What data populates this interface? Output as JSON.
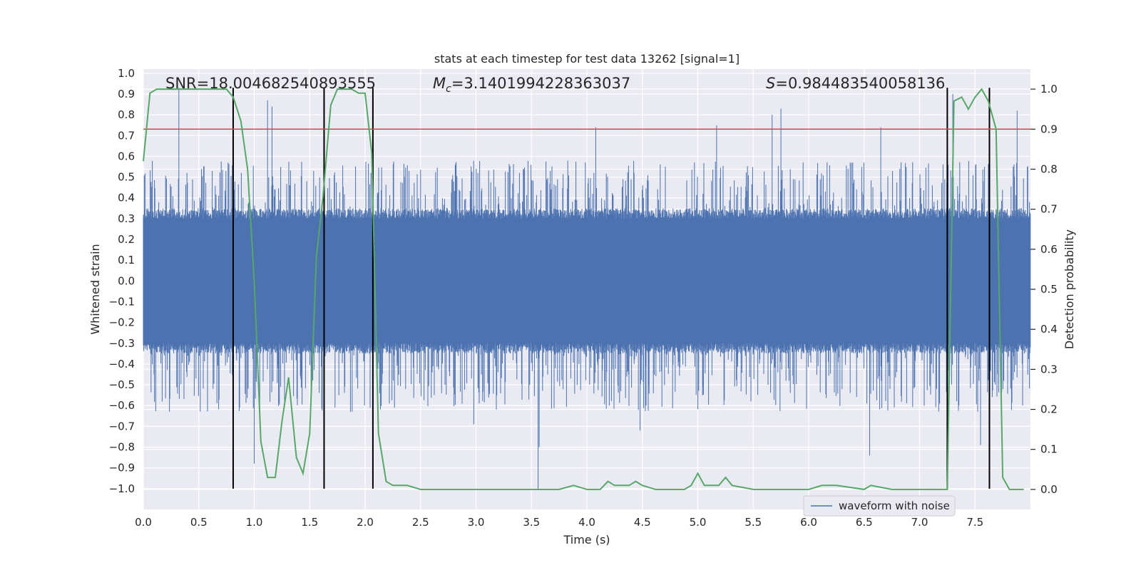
{
  "chart_data": {
    "type": "line",
    "title": "stats at each timestep for test data 13262 [signal=1]",
    "xlabel": "Time (s)",
    "ylabel_left": "Whitened strain",
    "ylabel_right": "Detection probability",
    "xlim": [
      0.0,
      8.0
    ],
    "ylim_left": [
      -1.1,
      1.02
    ],
    "ylim_right": [
      -0.05,
      1.05
    ],
    "xticks": [
      0.0,
      0.5,
      1.0,
      1.5,
      2.0,
      2.5,
      3.0,
      3.5,
      4.0,
      4.5,
      5.0,
      5.5,
      6.0,
      6.5,
      7.0,
      7.5
    ],
    "xtick_labels": [
      "0.0",
      "0.5",
      "1.0",
      "1.5",
      "2.0",
      "2.5",
      "3.0",
      "3.5",
      "4.0",
      "4.5",
      "5.0",
      "5.5",
      "6.0",
      "6.5",
      "7.0",
      "7.5"
    ],
    "yticks_left": [
      1.0,
      0.9,
      0.8,
      0.7,
      0.6,
      0.5,
      0.4,
      0.3,
      0.2,
      0.1,
      0.0,
      -0.1,
      -0.2,
      -0.3,
      -0.4,
      -0.5,
      -0.6,
      -0.7,
      -0.8,
      -0.9,
      -1.0
    ],
    "ytick_labels_left": [
      "1.0",
      "0.9",
      "0.8",
      "0.7",
      "0.6",
      "0.5",
      "0.4",
      "0.3",
      "0.2",
      "0.1",
      "0.0",
      "−0.1",
      "−0.2",
      "−0.3",
      "−0.4",
      "−0.5",
      "−0.6",
      "−0.7",
      "−0.8",
      "−0.9",
      "−1.0"
    ],
    "yticks_right": [
      1.0,
      0.9,
      0.8,
      0.7,
      0.6,
      0.5,
      0.4,
      0.3,
      0.2,
      0.1,
      0.0
    ],
    "ytick_labels_right": [
      "1.0",
      "0.9",
      "0.8",
      "0.7",
      "0.6",
      "0.5",
      "0.4",
      "0.3",
      "0.2",
      "0.1",
      "0.0"
    ],
    "annotations": {
      "snr": "SNR=18.004682540893555",
      "mc_symbol": "M",
      "mc_sub": "c",
      "mc_value": "=3.1401994228363037",
      "s_symbol": "S",
      "s_value": "=0.984483540058136"
    },
    "threshold": {
      "axis": "right",
      "value": 0.9,
      "color": "#c44e52"
    },
    "vertical_lines": {
      "x": [
        0.81,
        1.63,
        2.07,
        7.25,
        7.63
      ],
      "y_range_left": [
        -1.0,
        0.93
      ],
      "color": "#000000"
    },
    "waveform": {
      "name": "waveform with noise",
      "color": "#4c72b0",
      "core_envelope": 0.3,
      "typical_peak_range": [
        0.3,
        0.58
      ],
      "dense_sampling": true,
      "notable_spikes": [
        {
          "x": 0.32,
          "y": 0.93
        },
        {
          "x": 0.81,
          "y": 0.9
        },
        {
          "x": 1.12,
          "y": 0.87
        },
        {
          "x": 1.16,
          "y": 0.84
        },
        {
          "x": 1.0,
          "y": -0.88
        },
        {
          "x": 3.57,
          "y": -0.8
        },
        {
          "x": 3.56,
          "y": -1.0
        },
        {
          "x": 4.08,
          "y": 0.74
        },
        {
          "x": 5.17,
          "y": 0.75
        },
        {
          "x": 5.67,
          "y": 0.8
        },
        {
          "x": 5.75,
          "y": 0.83
        },
        {
          "x": 6.65,
          "y": 0.74
        },
        {
          "x": 6.55,
          "y": -0.84
        },
        {
          "x": 7.3,
          "y": 0.9
        },
        {
          "x": 7.55,
          "y": -0.79
        },
        {
          "x": 7.88,
          "y": 0.82
        },
        {
          "x": 2.98,
          "y": -0.69
        },
        {
          "x": 4.48,
          "y": -0.72
        }
      ]
    },
    "detection_probability": {
      "color": "#55a868",
      "x": [
        0.0,
        0.06,
        0.12,
        0.25,
        0.5,
        0.75,
        0.81,
        0.88,
        0.94,
        1.0,
        1.06,
        1.12,
        1.19,
        1.25,
        1.31,
        1.38,
        1.44,
        1.5,
        1.56,
        1.62,
        1.69,
        1.75,
        1.81,
        1.88,
        1.94,
        2.0,
        2.06,
        2.12,
        2.19,
        2.25,
        2.31,
        2.38,
        2.5,
        3.0,
        3.5,
        3.75,
        3.88,
        4.0,
        4.12,
        4.19,
        4.25,
        4.38,
        4.44,
        4.5,
        4.62,
        4.88,
        4.94,
        5.0,
        5.06,
        5.19,
        5.25,
        5.31,
        5.5,
        6.0,
        6.12,
        6.19,
        6.25,
        6.5,
        6.56,
        6.75,
        7.0,
        7.19,
        7.25,
        7.31,
        7.38,
        7.44,
        7.5,
        7.56,
        7.62,
        7.69,
        7.75,
        7.81,
        7.94
      ],
      "y": [
        0.82,
        0.99,
        1.0,
        1.0,
        1.0,
        1.0,
        0.98,
        0.92,
        0.8,
        0.52,
        0.12,
        0.03,
        0.03,
        0.17,
        0.28,
        0.08,
        0.04,
        0.14,
        0.58,
        0.73,
        0.96,
        1.0,
        1.0,
        1.0,
        0.99,
        0.99,
        0.84,
        0.14,
        0.02,
        0.01,
        0.01,
        0.01,
        0.0,
        0.0,
        0.0,
        0.0,
        0.01,
        0.0,
        0.0,
        0.02,
        0.01,
        0.01,
        0.02,
        0.01,
        0.0,
        0.0,
        0.01,
        0.04,
        0.01,
        0.01,
        0.03,
        0.01,
        0.0,
        0.0,
        0.01,
        0.01,
        0.01,
        0.0,
        0.01,
        0.0,
        0.0,
        0.0,
        0.0,
        0.97,
        0.98,
        0.95,
        0.98,
        1.0,
        0.97,
        0.9,
        0.03,
        0.0,
        0.0
      ]
    },
    "legend": {
      "placement": "lower-right",
      "entries": [
        "waveform with noise"
      ]
    },
    "grid": true,
    "background": "#eaeaf2"
  }
}
